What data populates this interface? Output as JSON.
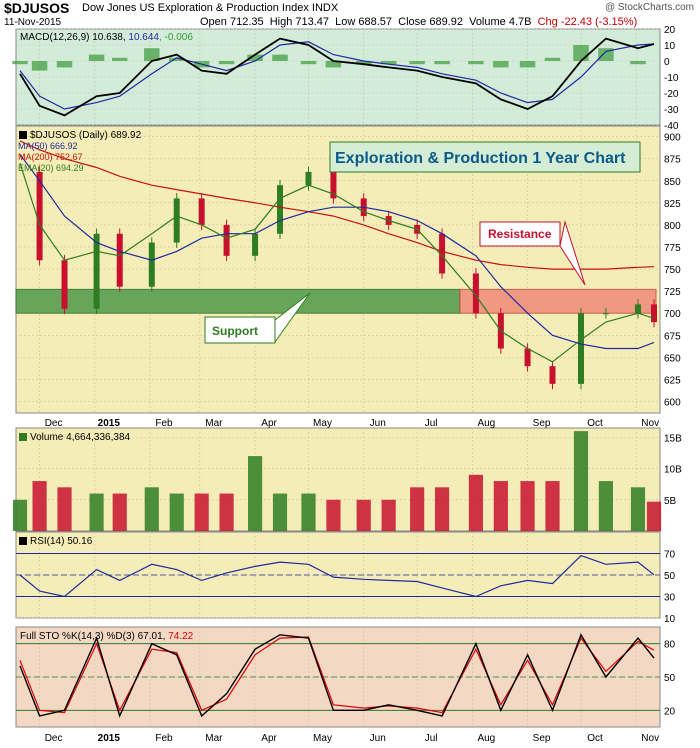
{
  "header": {
    "symbol": "$DJUSOS",
    "name": "Dow Jones US Exploration & Production Index INDX",
    "source": "@ StockCharts.com",
    "date": "11-Nov-2015",
    "ohlc": "Open 712.35  High 713.47  Low 688.57  Close 689.92  Volume 4.7B  ",
    "change": "Chg -22.43 (-3.15%)"
  },
  "colors": {
    "price_bg": "#f5edb8",
    "macd_bg": "#d3ecd9",
    "volume_bg": "#f5edb8",
    "rsi_bg": "#f5edb8",
    "sto_bg": "#f3d8c4",
    "support_zone": "#4f9a4a",
    "resistance_zone": "#f08a78",
    "ma50": "#1e2aa0",
    "ma200": "#c8100e",
    "ema20": "#2e7d22",
    "up_candle": "#2e7d22",
    "down_candle": "#c8102e"
  },
  "chart_data": [
    {
      "type": "line",
      "panel": "MACD",
      "legend": "MACD(12,26,9) 10.638, 10.644, -0.006",
      "legend_parts": [
        "MACD(12,26,9) 10.638,",
        "10.644",
        ", -0.006"
      ],
      "ylim": [
        -40,
        20
      ],
      "yticks": [
        20,
        10,
        0,
        -10,
        -20,
        -30,
        -40
      ],
      "x": [
        "2014-11-20",
        "2014-12-01",
        "2014-12-15",
        "2015-01-02",
        "2015-01-15",
        "2015-02-02",
        "2015-02-16",
        "2015-03-02",
        "2015-03-16",
        "2015-04-01",
        "2015-04-15",
        "2015-05-01",
        "2015-05-15",
        "2015-06-01",
        "2015-06-15",
        "2015-07-01",
        "2015-07-15",
        "2015-08-03",
        "2015-08-17",
        "2015-09-01",
        "2015-09-15",
        "2015-10-01",
        "2015-10-15",
        "2015-11-02",
        "2015-11-11"
      ],
      "series": [
        {
          "name": "MACD",
          "values": [
            -8,
            -28,
            -34,
            -22,
            -20,
            0,
            4,
            -6,
            -8,
            4,
            14,
            10,
            0,
            -2,
            -4,
            -6,
            -10,
            -14,
            -24,
            -30,
            -22,
            0,
            14,
            8,
            10.6
          ]
        },
        {
          "name": "Signal",
          "values": [
            -6,
            -22,
            -30,
            -26,
            -22,
            -8,
            2,
            -2,
            -6,
            0,
            10,
            12,
            4,
            0,
            -2,
            -4,
            -8,
            -12,
            -20,
            -26,
            -24,
            -10,
            6,
            10,
            10.6
          ]
        },
        {
          "name": "Histogram",
          "values": [
            -2,
            -6,
            -4,
            4,
            2,
            8,
            2,
            -4,
            -2,
            4,
            4,
            -2,
            -4,
            -2,
            -2,
            -2,
            -2,
            -2,
            -4,
            -4,
            2,
            10,
            8,
            -2,
            0
          ]
        }
      ]
    },
    {
      "type": "candlestick",
      "panel": "Price",
      "legend": [
        "$DJUSOS (Daily) 689.92",
        "MA(50) 666.92",
        "MA(200) 752.67",
        "EMA(20) 694.29"
      ],
      "ylim": [
        587,
        912
      ],
      "yticks": [
        600,
        625,
        650,
        675,
        700,
        725,
        750,
        775,
        800,
        825,
        850,
        875,
        900
      ],
      "xticks": [
        "Dec",
        "2015",
        "Feb",
        "Mar",
        "Apr",
        "May",
        "Jun",
        "Jul",
        "Aug",
        "Sep",
        "Oct",
        "Nov"
      ],
      "x": [
        "2014-11-20",
        "2014-12-01",
        "2014-12-15",
        "2015-01-02",
        "2015-01-15",
        "2015-02-02",
        "2015-02-16",
        "2015-03-02",
        "2015-03-16",
        "2015-04-01",
        "2015-04-15",
        "2015-05-01",
        "2015-05-15",
        "2015-06-01",
        "2015-06-15",
        "2015-07-01",
        "2015-07-15",
        "2015-08-03",
        "2015-08-17",
        "2015-09-01",
        "2015-09-15",
        "2015-10-01",
        "2015-10-15",
        "2015-11-02",
        "2015-11-11"
      ],
      "close": [
        860,
        760,
        705,
        790,
        730,
        780,
        830,
        800,
        765,
        790,
        845,
        860,
        830,
        810,
        800,
        790,
        745,
        700,
        660,
        640,
        620,
        700,
        700,
        710,
        689.92
      ],
      "ma50": [
        880,
        850,
        810,
        780,
        770,
        760,
        770,
        785,
        790,
        790,
        805,
        815,
        820,
        820,
        815,
        805,
        790,
        765,
        730,
        700,
        675,
        665,
        660,
        660,
        666.92
      ],
      "ma200": [
        895,
        885,
        875,
        865,
        855,
        845,
        840,
        835,
        830,
        825,
        820,
        815,
        810,
        800,
        790,
        780,
        770,
        760,
        755,
        752,
        750,
        750,
        750,
        752,
        752.67
      ],
      "ema20": [
        870,
        800,
        760,
        770,
        765,
        790,
        810,
        800,
        785,
        795,
        830,
        845,
        835,
        815,
        805,
        795,
        765,
        720,
        680,
        660,
        645,
        670,
        690,
        700,
        694.29
      ],
      "annotations": [
        {
          "text": "Exploration & Production 1 Year Chart"
        },
        {
          "text": "Resistance",
          "range": [
            700,
            727
          ]
        },
        {
          "text": "Support",
          "range": [
            700,
            727
          ]
        }
      ]
    },
    {
      "type": "bar",
      "panel": "Volume",
      "legend": "Volume 4,664,336,384",
      "ylim": [
        0,
        16.5
      ],
      "yticks": [
        "15B",
        "10B",
        "5B"
      ],
      "ytick_values": [
        15,
        10,
        5
      ],
      "x": [
        "2014-11-20",
        "2014-12-01",
        "2014-12-15",
        "2015-01-02",
        "2015-01-15",
        "2015-02-02",
        "2015-02-16",
        "2015-03-02",
        "2015-03-16",
        "2015-04-01",
        "2015-04-15",
        "2015-05-01",
        "2015-05-15",
        "2015-06-01",
        "2015-06-15",
        "2015-07-01",
        "2015-07-15",
        "2015-08-03",
        "2015-08-17",
        "2015-09-01",
        "2015-09-15",
        "2015-10-01",
        "2015-10-15",
        "2015-11-02",
        "2015-11-11"
      ],
      "values": [
        5,
        8,
        7,
        6,
        6,
        7,
        6,
        6,
        6,
        12,
        6,
        6,
        5,
        5,
        5,
        7,
        7,
        9,
        8,
        8,
        8,
        16,
        8,
        7,
        4.7
      ]
    },
    {
      "type": "line",
      "panel": "RSI",
      "legend": "RSI(14) 50.16",
      "ylim": [
        10,
        90
      ],
      "yticks": [
        70,
        50,
        30,
        10
      ],
      "x": [
        "2014-11-20",
        "2014-12-01",
        "2014-12-15",
        "2015-01-02",
        "2015-01-15",
        "2015-02-02",
        "2015-02-16",
        "2015-03-02",
        "2015-03-16",
        "2015-04-01",
        "2015-04-15",
        "2015-05-01",
        "2015-05-15",
        "2015-06-01",
        "2015-06-15",
        "2015-07-01",
        "2015-07-15",
        "2015-08-03",
        "2015-08-17",
        "2015-09-01",
        "2015-09-15",
        "2015-10-01",
        "2015-10-15",
        "2015-11-02",
        "2015-11-11"
      ],
      "values": [
        50,
        35,
        30,
        55,
        45,
        60,
        55,
        45,
        52,
        58,
        62,
        60,
        48,
        46,
        45,
        44,
        38,
        30,
        40,
        45,
        42,
        68,
        60,
        62,
        50.16
      ]
    },
    {
      "type": "line",
      "panel": "Full STO",
      "legend": "Full STO %K(14,3) %D(3) 67.01, 74.22",
      "legend_parts": [
        "Full STO %K(14,3) %D(3) 67.01,",
        "74.22"
      ],
      "ylim": [
        5,
        95
      ],
      "yticks": [
        80,
        50,
        20
      ],
      "xticks": [
        "Dec",
        "2015",
        "Feb",
        "Mar",
        "Apr",
        "May",
        "Jun",
        "Jul",
        "Aug",
        "Sep",
        "Oct",
        "Nov"
      ],
      "x": [
        "2014-11-20",
        "2014-12-01",
        "2014-12-15",
        "2015-01-02",
        "2015-01-15",
        "2015-02-02",
        "2015-02-16",
        "2015-03-02",
        "2015-03-16",
        "2015-04-01",
        "2015-04-15",
        "2015-05-01",
        "2015-05-15",
        "2015-06-01",
        "2015-06-15",
        "2015-07-01",
        "2015-07-15",
        "2015-08-03",
        "2015-08-17",
        "2015-09-01",
        "2015-09-15",
        "2015-10-01",
        "2015-10-15",
        "2015-11-02",
        "2015-11-11"
      ],
      "series": [
        {
          "name": "%K",
          "values": [
            60,
            15,
            20,
            85,
            15,
            80,
            70,
            15,
            35,
            75,
            88,
            85,
            20,
            20,
            25,
            20,
            15,
            80,
            20,
            70,
            20,
            88,
            50,
            85,
            67.01
          ]
        },
        {
          "name": "%D",
          "values": [
            65,
            20,
            18,
            80,
            20,
            75,
            72,
            20,
            30,
            70,
            85,
            86,
            25,
            22,
            24,
            22,
            18,
            75,
            25,
            65,
            25,
            85,
            55,
            82,
            74.22
          ]
        }
      ]
    }
  ]
}
